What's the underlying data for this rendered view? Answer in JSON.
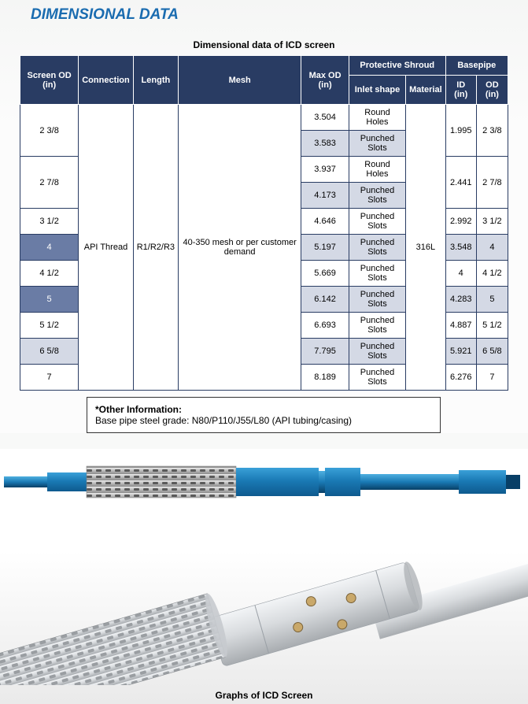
{
  "title": "DIMENSIONAL DATA",
  "tableCaption": "Dimensional data of ICD screen",
  "headers": {
    "screen": "Screen OD (in)",
    "conn": "Connection",
    "length": "Length",
    "mesh": "Mesh",
    "maxod": "Max OD (in)",
    "shroud": "Protective Shroud",
    "inlet": "Inlet shape",
    "material": "Material",
    "basepipe": "Basepipe",
    "id": "ID (in)",
    "od": "OD (in)"
  },
  "spans": {
    "conn": "API Thread",
    "length": "R1/R2/R3",
    "mesh": "40-350 mesh or per customer demand",
    "material": "316L"
  },
  "rows": [
    {
      "screen": "2 3/8",
      "max": "3.504",
      "inlet": "Round Holes",
      "id": "1.995",
      "od": "2 3/8",
      "rs": 2
    },
    {
      "screen": "",
      "max": "3.583",
      "inlet": "Punched Slots",
      "id": "",
      "od": "",
      "alt": true
    },
    {
      "screen": "2 7/8",
      "max": "3.937",
      "inlet": "Round Holes",
      "id": "2.441",
      "od": "2 7/8",
      "rs": 2
    },
    {
      "screen": "",
      "max": "4.173",
      "inlet": "Punched Slots",
      "id": "",
      "od": "",
      "alt": true
    },
    {
      "screen": "3 1/2",
      "max": "4.646",
      "inlet": "Punched Slots",
      "id": "2.992",
      "od": "3 1/2"
    },
    {
      "screen": "4",
      "max": "5.197",
      "inlet": "Punched Slots",
      "id": "3.548",
      "od": "4",
      "alt": true,
      "hl": true
    },
    {
      "screen": "4 1/2",
      "max": "5.669",
      "inlet": "Punched Slots",
      "id": "4",
      "od": "4 1/2"
    },
    {
      "screen": "5",
      "max": "6.142",
      "inlet": "Punched Slots",
      "id": "4.283",
      "od": "5",
      "alt": true,
      "hl": true
    },
    {
      "screen": "5 1/2",
      "max": "6.693",
      "inlet": "Punched Slots",
      "id": "4.887",
      "od": "5 1/2"
    },
    {
      "screen": "6 5/8",
      "max": "7.795",
      "inlet": "Punched Slots",
      "id": "5.921",
      "od": "6 5/8",
      "alt": true
    },
    {
      "screen": "7",
      "max": "8.189",
      "inlet": "Punched Slots",
      "id": "6.276",
      "od": "7"
    }
  ],
  "note": {
    "title": "*Other Information:",
    "body": "Base pipe steel grade: N80/P110/J55/L80 (API tubing/casing)"
  },
  "graphCaption": "Graphs of ICD Screen",
  "colors": {
    "headerBg": "#293c63",
    "altRow": "#d4d9e5",
    "hlDark": "#354e85",
    "hlLight": "#6a7ca5",
    "titleColor": "#1a6cb0",
    "toolBlue": "#1a7ab5",
    "toolBlueDark": "#0e5a8e",
    "shroudGrey": "#c2c2c2",
    "shroudDark": "#8a8a8a",
    "bodyGrey": "#d8dbde",
    "bodyDark": "#a8acb0"
  }
}
